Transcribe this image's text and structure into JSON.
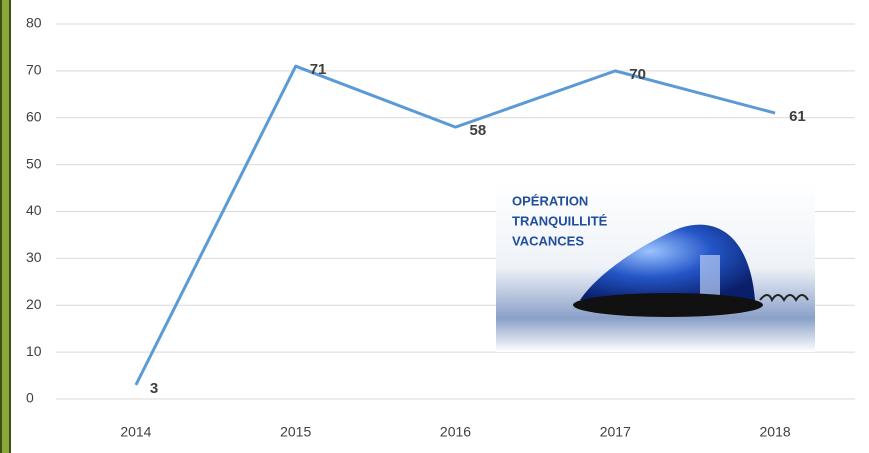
{
  "chart_data": {
    "type": "line",
    "categories": [
      "2014",
      "2015",
      "2016",
      "2017",
      "2018"
    ],
    "series": [
      {
        "name": null,
        "color": "#5b9bd5",
        "values": [
          3,
          71,
          58,
          70,
          61
        ]
      }
    ],
    "ylim": [
      0,
      80
    ],
    "yticks": [
      0,
      10,
      20,
      30,
      40,
      50,
      60,
      70,
      80
    ],
    "grid": true,
    "annotations": [
      "OPÉRATION",
      "TRANQUILLITÉ",
      "VACANCES"
    ]
  }
}
